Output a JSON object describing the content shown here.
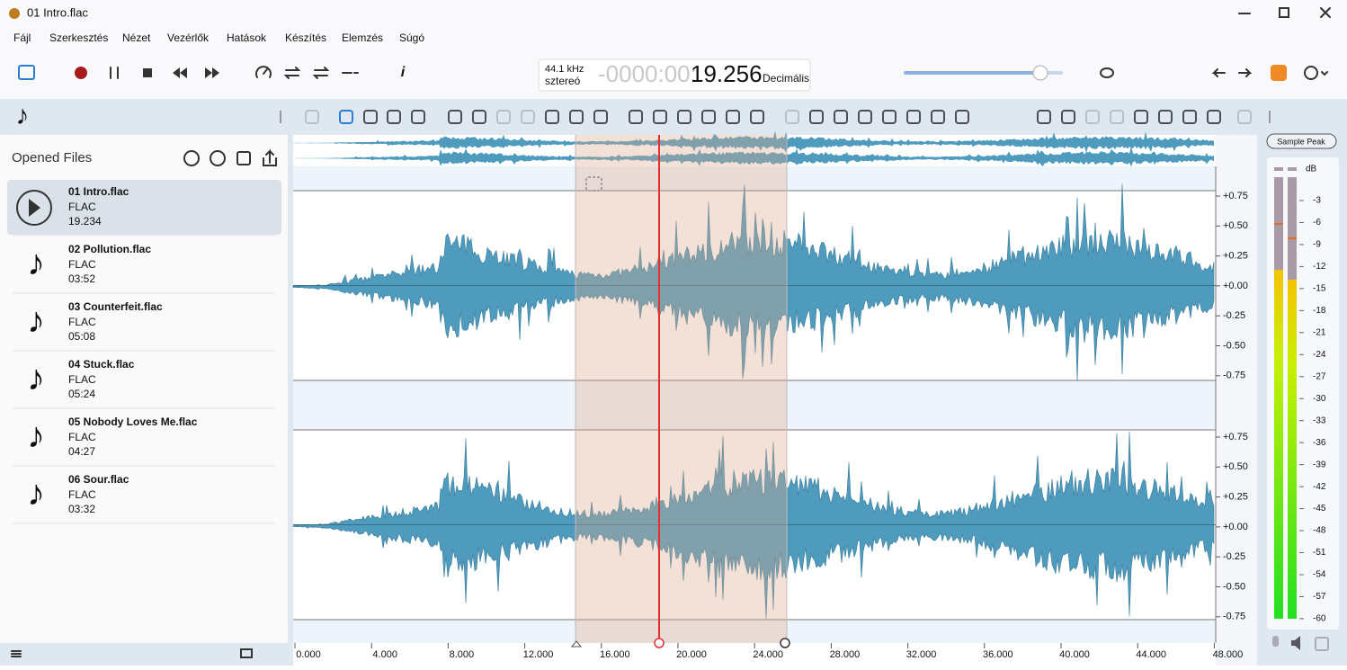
{
  "window": {
    "title": "01 Intro.flac"
  },
  "menu": [
    "Fájl",
    "Szerkesztés",
    "Nézet",
    "Vezérlők",
    "Hatások",
    "Készítés",
    "Elemzés",
    "Súgó"
  ],
  "time_display": {
    "rate": "44.1 kHz",
    "channels": "sztereó",
    "prefix": "-0000:00:",
    "time": "19.256",
    "format": "Decimális"
  },
  "sidebar": {
    "title": "Opened Files",
    "files": [
      {
        "name": "01 Intro.flac",
        "format": "FLAC",
        "duration": "19.234"
      },
      {
        "name": "02 Pollution.flac",
        "format": "FLAC",
        "duration": "03:52"
      },
      {
        "name": "03 Counterfeit.flac",
        "format": "FLAC",
        "duration": "05:08"
      },
      {
        "name": "04 Stuck.flac",
        "format": "FLAC",
        "duration": "05:24"
      },
      {
        "name": "05 Nobody Loves Me.flac",
        "format": "FLAC",
        "duration": "04:27"
      },
      {
        "name": "06 Sour.flac",
        "format": "FLAC",
        "duration": "03:32"
      }
    ]
  },
  "amplitude_labels": [
    "+0.75",
    "+0.50",
    "+0.25",
    "+0.00",
    "-0.25",
    "-0.50",
    "-0.75"
  ],
  "time_labels": [
    "0.000",
    "4.000",
    "8.000",
    "12.000",
    "16.000",
    "20.000",
    "24.000",
    "28.000",
    "32.000",
    "36.000",
    "40.000",
    "44.000",
    "48.000"
  ],
  "meter": {
    "mode": "Sample Peak",
    "unit": "dB",
    "labels": [
      "-3",
      "-6",
      "-9",
      "-12",
      "-15",
      "-18",
      "-21",
      "-24",
      "-27",
      "-30",
      "-33",
      "-36",
      "-39",
      "-42",
      "-45",
      "-48",
      "-51",
      "-54",
      "-57",
      "-60"
    ]
  }
}
